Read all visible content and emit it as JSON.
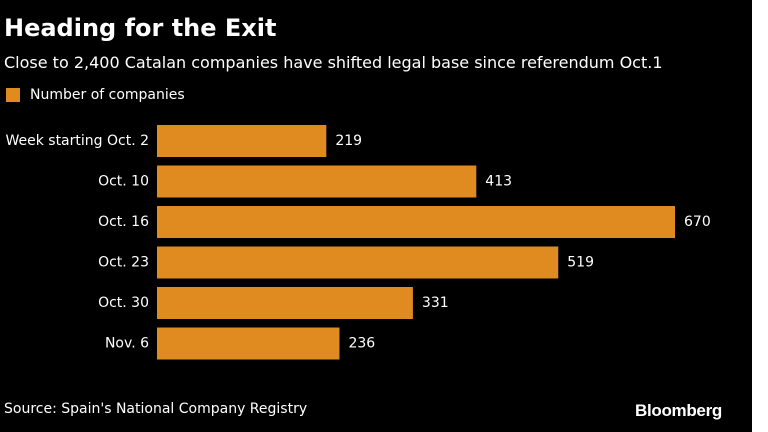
{
  "colors": {
    "background": "#000000",
    "bar": "#e08b1f",
    "text": "#ffffff"
  },
  "header": {
    "title": "Heading for the Exit",
    "subtitle": "Close to 2,400 Catalan companies have shifted legal base since referendum Oct.1"
  },
  "chart_data": {
    "type": "bar",
    "orientation": "horizontal",
    "title": "Heading for the Exit",
    "subtitle": "Close to 2,400 Catalan companies have shifted legal base since referendum Oct.1",
    "legend": [
      "Number of companies"
    ],
    "legend_position": "top-left",
    "categories": [
      "Week starting Oct. 2",
      "Oct. 10",
      "Oct. 16",
      "Oct. 23",
      "Oct. 30",
      "Nov. 6"
    ],
    "series": [
      {
        "name": "Number of companies",
        "values": [
          219,
          413,
          670,
          519,
          331,
          236
        ]
      }
    ],
    "data_labels": [
      "219",
      "413",
      "670",
      "519",
      "331",
      "236"
    ],
    "xlim": [
      0,
      670
    ],
    "grid": false
  },
  "footer": {
    "source": "Source: Spain's National Company Registry",
    "brand": "Bloomberg"
  }
}
